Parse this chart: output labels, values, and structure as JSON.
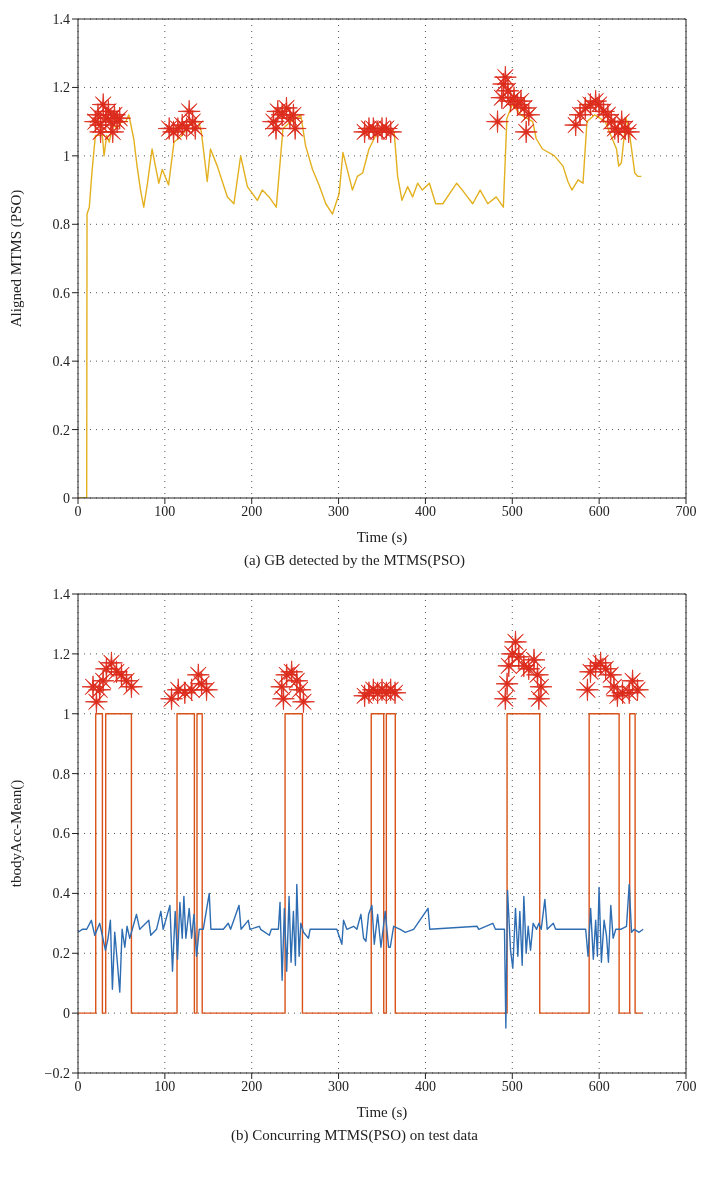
{
  "chart_data": [
    {
      "type": "line",
      "title": "(a) GB detected by the MTMS(PSO)",
      "xlabel": "Time (s)",
      "ylabel": "Aligned MTMS (PSO)",
      "xlim": [
        0,
        700
      ],
      "xticks": [
        0,
        100,
        200,
        300,
        400,
        500,
        600,
        700
      ],
      "ylim": [
        0,
        1.4
      ],
      "yticks": [
        0,
        0.2,
        0.4,
        0.6,
        0.8,
        1,
        1.2,
        1.4
      ],
      "grid": true,
      "series": [
        {
          "color": "#e3b01f",
          "x": [
            0,
            10,
            10.4,
            13,
            16,
            20,
            24,
            28,
            30,
            33,
            36,
            40,
            45,
            50,
            55,
            58.5,
            64.2,
            68,
            72,
            75.7,
            80,
            85.3,
            93,
            97,
            104.3,
            110.5,
            120,
            130,
            139,
            142,
            148.8,
            152.5,
            160.4,
            172,
            179.5,
            187.3,
            195,
            206.5,
            212.2,
            220,
            228.3,
            236,
            245,
            256.5,
            262,
            270,
            277.5,
            285.3,
            293,
            300.7,
            305,
            316,
            321.6,
            327.7,
            335,
            345,
            360.2,
            364,
            368,
            373,
            379.5,
            385.2,
            391,
            396.4,
            404.6,
            411.8,
            420,
            436,
            442.5,
            454.4,
            463,
            471.8,
            481.5,
            489.7,
            493.8,
            500,
            510,
            523.5,
            527.6,
            534.8,
            548.6,
            558.4,
            564,
            568.6,
            575.8,
            581.4,
            586,
            595,
            607,
            620,
            622.5,
            625.6,
            631,
            634.2,
            641,
            644.5,
            648.6
          ],
          "values": [
            0,
            0,
            0.83,
            0.85,
            0.95,
            1.06,
            null,
            1.06,
            1.0,
            1.06,
            1.04,
            1.09,
            1.08,
            1.1,
            1.1,
            1.12,
            1.05,
            0.97,
            0.9,
            0.85,
            0.92,
            1.02,
            0.92,
            0.96,
            0.915,
            1.04,
            1.06,
            1.1,
            1.1,
            1.07,
            0.925,
            1.02,
            0.97,
            0.88,
            0.86,
            1.0,
            0.91,
            0.87,
            0.9,
            0.88,
            0.85,
            1.08,
            1.1,
            1.12,
            1.03,
            0.96,
            0.915,
            0.86,
            0.83,
            0.89,
            1.01,
            0.9,
            0.94,
            0.95,
            1.02,
            1.07,
            1.08,
            1.07,
            0.94,
            0.87,
            0.91,
            0.88,
            0.92,
            0.9,
            0.92,
            0.86,
            0.86,
            0.92,
            0.9,
            0.86,
            0.9,
            0.86,
            0.88,
            0.85,
            1.11,
            1.15,
            1.12,
            1.1,
            1.05,
            1.02,
            1.0,
            0.97,
            0.925,
            0.9,
            0.93,
            0.92,
            1.1,
            1.12,
            1.1,
            1.02,
            0.97,
            0.98,
            1.11,
            1.08,
            0.95,
            0.94,
            0.94
          ]
        },
        {
          "type": "scatter",
          "marker": "star",
          "color": "#dc2b1c",
          "x": [
            20,
            23,
            26,
            29,
            32,
            35,
            38,
            42,
            45,
            48,
            26,
            40,
            105,
            110,
            115,
            120,
            125,
            128,
            132,
            135,
            225,
            230,
            235,
            240,
            244,
            248,
            228,
            250,
            330,
            335,
            340,
            345,
            350,
            355,
            360,
            483,
            488,
            490,
            492,
            495,
            498,
            502,
            506,
            510,
            514,
            516,
            519,
            573,
            578,
            584,
            590,
            596,
            600,
            605,
            610,
            614,
            618,
            622,
            626,
            630,
            634
          ],
          "values": [
            1.1,
            1.12,
            1.09,
            1.15,
            1.11,
            1.13,
            1.1,
            1.12,
            1.1,
            1.11,
            1.07,
            1.07,
            1.08,
            1.07,
            1.08,
            1.09,
            1.08,
            1.13,
            1.1,
            1.08,
            1.1,
            1.13,
            1.12,
            1.14,
            1.11,
            1.12,
            1.08,
            1.08,
            1.07,
            1.08,
            1.08,
            1.07,
            1.08,
            1.08,
            1.07,
            1.1,
            1.17,
            1.21,
            1.23,
            1.19,
            1.16,
            1.17,
            1.15,
            1.16,
            1.14,
            1.07,
            1.12,
            1.09,
            1.12,
            1.14,
            1.15,
            1.16,
            1.15,
            1.13,
            1.12,
            1.1,
            1.08,
            1.07,
            1.1,
            1.08,
            1.07
          ]
        }
      ]
    },
    {
      "type": "line",
      "title": "(b) Concurring MTMS(PSO) on test data",
      "xlabel": "Time (s)",
      "ylabel": "tbodyAcc-Mean()",
      "xlim": [
        0,
        700
      ],
      "xticks": [
        0,
        100,
        200,
        300,
        400,
        500,
        600,
        700
      ],
      "ylim": [
        -0.2,
        1.4
      ],
      "yticks": [
        {
          "value": -0.2,
          "label": "−0.2"
        },
        0,
        0.2,
        0.4,
        0.6,
        0.8,
        1,
        1.2,
        1.4
      ],
      "grid": true,
      "series": [
        {
          "type": "step",
          "color": "#d95319",
          "x": [
            0,
            20.4,
            28.1,
            31.9,
            61.5,
            114,
            134,
            137,
            143,
            238.4,
            258.4,
            337.6,
            352,
            355,
            365.3,
            494,
            531.6,
            588.5,
            623,
            635.2,
            641.4,
            650
          ],
          "values": [
            0,
            1,
            0,
            1,
            0,
            1,
            0,
            1,
            0,
            1,
            0,
            1,
            0,
            1,
            0,
            1,
            0,
            1,
            0,
            1,
            0,
            0
          ]
        },
        {
          "color": "#2f6db3",
          "x": [
            0,
            5,
            10,
            15.4,
            19.3,
            25,
            31.6,
            34.6,
            37.3,
            39.6,
            42.3,
            45,
            48.1,
            50.8,
            53.9,
            56.5,
            59.6,
            63.5,
            67.3,
            71.1,
            81.5,
            83.8,
            90.4,
            95.4,
            98.1,
            105.8,
            108.8,
            111.9,
            114.6,
            117.3,
            120,
            121.9,
            124.2,
            128,
            130.8,
            133.5,
            136.5,
            139.6,
            144.2,
            151.1,
            153,
            167.3,
            173,
            175.7,
            185.4,
            187.7,
            196.1,
            198,
            208.8,
            210.3,
            220.3,
            222.6,
            230.7,
            232.6,
            235,
            237.6,
            240.3,
            243,
            245.3,
            248,
            250.3,
            251.9,
            254.6,
            256.5,
            259.6,
            265.3,
            267.2,
            298,
            303.8,
            305.7,
            309.5,
            317.3,
            321.1,
            325.7,
            328.8,
            331.5,
            334.6,
            338.4,
            341.1,
            345,
            348.8,
            353.7,
            357.6,
            359.5,
            363.4,
            371,
            376.8,
            386.4,
            403,
            405,
            459.5,
            461.4,
            477.6,
            480.6,
            491,
            492.6,
            494.5,
            498,
            500.6,
            503.7,
            506.4,
            508.7,
            511.4,
            513.3,
            516,
            518.3,
            521,
            524,
            528,
            530.6,
            533.3,
            537.5,
            540.2,
            547.2,
            549.9,
            584.5,
            587.2,
            590.2,
            593.3,
            596,
            598,
            599.9,
            602.6,
            605.7,
            608.4,
            610.7,
            613.4,
            616.1,
            619.2,
            624.9,
            631.5,
            634.6,
            637.3,
            640.4,
            646.1,
            650.7
          ],
          "values": [
            0.27,
            0.28,
            0.28,
            0.31,
            0.26,
            0.3,
            0.21,
            0.25,
            0.31,
            0.08,
            0.27,
            0.18,
            0.07,
            0.28,
            0.22,
            0.29,
            0.25,
            0.29,
            0.33,
            0.28,
            0.31,
            0.26,
            0.28,
            0.34,
            0.28,
            0.36,
            0.14,
            0.34,
            0.18,
            0.37,
            0.25,
            0.39,
            0.25,
            0.35,
            0.25,
            0.33,
            0.19,
            0.28,
            0.28,
            0.4,
            0.28,
            0.28,
            0.3,
            0.28,
            0.36,
            0.28,
            0.31,
            0.28,
            0.29,
            0.28,
            0.26,
            0.28,
            0.28,
            0.37,
            0.11,
            0.35,
            0.14,
            0.39,
            0.17,
            0.34,
            0.16,
            0.43,
            0.19,
            0.3,
            0.27,
            0.25,
            0.28,
            0.28,
            0.23,
            0.31,
            0.28,
            0.29,
            0.28,
            0.33,
            0.25,
            0.24,
            0.33,
            0.36,
            0.23,
            0.33,
            0.22,
            0.34,
            0.22,
            0.22,
            0.29,
            0.28,
            0.27,
            0.28,
            0.35,
            0.28,
            0.29,
            0.28,
            0.3,
            0.28,
            0.28,
            -0.05,
            0.41,
            0.21,
            0.15,
            0.35,
            0.19,
            0.34,
            0.16,
            0.39,
            0.2,
            0.29,
            0.21,
            0.3,
            0.28,
            0.3,
            0.28,
            0.38,
            0.28,
            0.3,
            0.28,
            0.28,
            0.19,
            0.35,
            0.18,
            0.31,
            0.19,
            0.42,
            0.17,
            0.31,
            0.26,
            0.17,
            0.36,
            0.25,
            0.28,
            0.28,
            0.29,
            0.43,
            0.27,
            0.28,
            0.27,
            0.28
          ]
        },
        {
          "type": "scatter",
          "marker": "star",
          "color": "#dc2b1c",
          "x": [
            17.3,
            25,
            32.7,
            38.5,
            44.3,
            50,
            55.8,
            61.5,
            21.2,
            28.9,
            107.7,
            115.4,
            123,
            130.8,
            138.5,
            142.3,
            148,
            234.6,
            240.3,
            246,
            251.9,
            255.7,
            259.6,
            236.5,
            330,
            335,
            340,
            345,
            350,
            355,
            360,
            365,
            492,
            494,
            496,
            500,
            503.7,
            507.5,
            513.3,
            519,
            525,
            529,
            530.6,
            533,
            586.5,
            590,
            596,
            601.7,
            607.5,
            613.3,
            617,
            621,
            627,
            634.6,
            638.5,
            644.2
          ],
          "values": [
            1.09,
            1.08,
            1.15,
            1.17,
            1.14,
            1.13,
            1.11,
            1.09,
            1.04,
            1.11,
            1.05,
            1.08,
            1.07,
            1.08,
            1.13,
            1.1,
            1.08,
            1.09,
            1.13,
            1.14,
            1.11,
            1.08,
            1.04,
            1.05,
            1.06,
            1.07,
            1.08,
            1.07,
            1.08,
            1.07,
            1.08,
            1.07,
            1.05,
            1.1,
            1.16,
            1.2,
            1.24,
            1.19,
            1.16,
            1.15,
            1.18,
            1.13,
            1.05,
            1.09,
            1.08,
            1.14,
            1.16,
            1.17,
            1.15,
            1.13,
            1.09,
            1.06,
            1.07,
            1.07,
            1.11,
            1.08
          ]
        }
      ]
    }
  ]
}
